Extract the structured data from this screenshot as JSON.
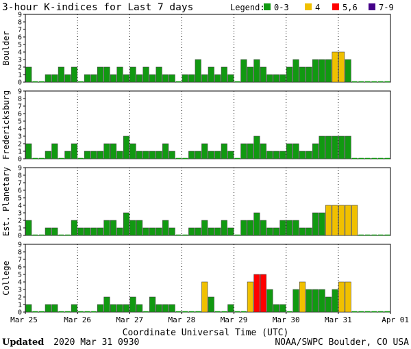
{
  "chart_data": {
    "type": "bar",
    "title": "3-hour K-indices for Last 7 days",
    "xlabel": "Coordinate Universal Time (UTC)",
    "x_ticks": [
      "Mar 25",
      "Mar 26",
      "Mar 27",
      "Mar 28",
      "Mar 29",
      "Mar 30",
      "Mar 31",
      "Apr 01"
    ],
    "ylim": [
      0,
      9
    ],
    "y_ticks": [
      "0",
      "1",
      "2",
      "3",
      "4",
      "5",
      "6",
      "7",
      "8",
      "9"
    ],
    "legend": {
      "label": "Legend:",
      "placement": "top-right",
      "entries": [
        {
          "label": "0-3",
          "color": "#119911"
        },
        {
          "label": "4",
          "color": "#f0c000"
        },
        {
          "label": "5,6",
          "color": "#ff0000"
        },
        {
          "label": "7-9",
          "color": "#440088"
        }
      ]
    },
    "bar_outline": "#444444",
    "series": [
      {
        "name": "Boulder",
        "values": [
          2,
          0,
          0,
          1,
          1,
          2,
          1,
          2,
          0,
          1,
          1,
          2,
          2,
          1,
          2,
          1,
          2,
          1,
          2,
          1,
          2,
          1,
          1,
          0,
          1,
          1,
          3,
          1,
          2,
          1,
          2,
          1,
          0,
          3,
          2,
          3,
          2,
          1,
          1,
          1,
          2,
          3,
          2,
          2,
          3,
          3,
          3,
          4,
          4,
          3,
          0,
          0,
          0,
          0,
          0,
          0
        ]
      },
      {
        "name": "Fredericksburg",
        "values": [
          2,
          0,
          0,
          1,
          2,
          0,
          1,
          2,
          0,
          1,
          1,
          1,
          2,
          2,
          1,
          3,
          2,
          1,
          1,
          1,
          1,
          2,
          1,
          0,
          0,
          1,
          1,
          2,
          1,
          1,
          2,
          1,
          0,
          2,
          2,
          3,
          2,
          1,
          1,
          1,
          2,
          2,
          1,
          1,
          2,
          3,
          3,
          3,
          3,
          3,
          0,
          0,
          0,
          0,
          0,
          0
        ]
      },
      {
        "name": "Est. Planetary",
        "values": [
          2,
          0,
          0,
          1,
          1,
          0,
          0,
          2,
          1,
          1,
          1,
          1,
          2,
          2,
          1,
          3,
          2,
          2,
          1,
          1,
          1,
          2,
          1,
          0,
          0,
          1,
          1,
          2,
          1,
          1,
          2,
          1,
          0,
          2,
          2,
          3,
          2,
          1,
          1,
          2,
          2,
          2,
          1,
          1,
          3,
          3,
          4,
          4,
          4,
          4,
          4,
          0,
          0,
          0,
          0,
          0
        ]
      },
      {
        "name": "College",
        "values": [
          1,
          0,
          0,
          1,
          1,
          0,
          0,
          1,
          0,
          0,
          0,
          1,
          2,
          1,
          1,
          1,
          2,
          1,
          0,
          2,
          1,
          1,
          1,
          0,
          0,
          0,
          0,
          4,
          2,
          0,
          0,
          1,
          0,
          0,
          4,
          5,
          5,
          3,
          1,
          1,
          0,
          3,
          4,
          3,
          3,
          3,
          2,
          3,
          4,
          4,
          0,
          0,
          0,
          0,
          0,
          0
        ]
      }
    ]
  },
  "footer": {
    "updated_label": "Updated",
    "updated_value": "2020 Mar 31 0930",
    "source": "NOAA/SWPC Boulder, CO USA"
  }
}
